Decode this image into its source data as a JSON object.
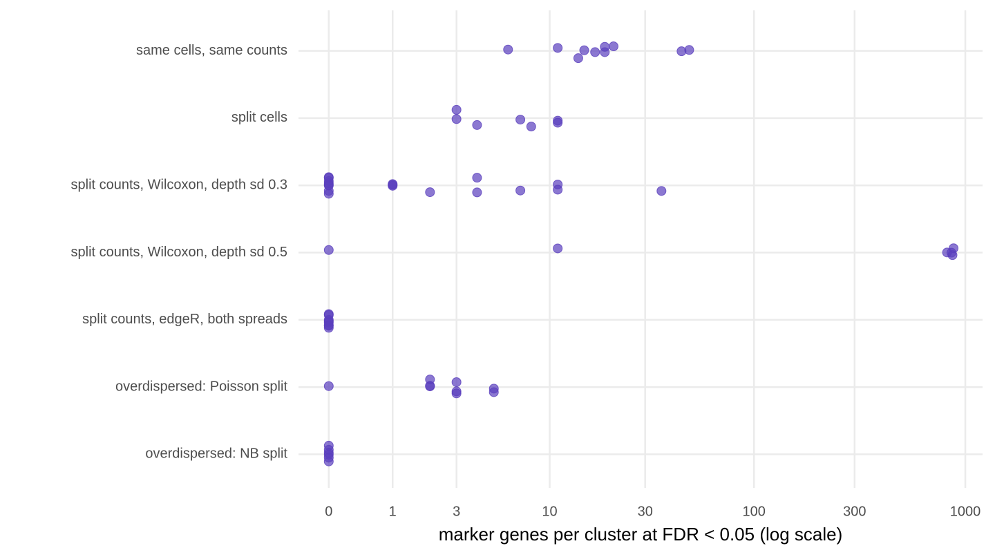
{
  "chart_data": {
    "type": "strip",
    "x_label": "marker genes per cluster at FDR < 0.05 (log scale)",
    "xscale": "log",
    "categories": [
      "same cells, same counts",
      "split cells",
      "split counts, Wilcoxon, depth sd 0.3",
      "split counts, Wilcoxon, depth sd 0.5",
      "split counts, edgeR, both spreads",
      "overdispersed: Poisson split",
      "overdispersed: NB split"
    ],
    "values": [
      [
        14,
        15,
        17,
        19,
        19,
        21,
        45,
        49,
        6,
        11
      ],
      [
        3,
        3,
        4,
        7,
        8,
        11,
        11
      ],
      [
        0,
        0,
        0,
        0,
        0,
        0,
        0,
        0,
        1,
        1,
        1,
        2,
        4,
        4,
        7,
        11,
        11,
        36
      ],
      [
        0,
        11,
        820,
        860,
        870,
        880
      ],
      [
        0,
        0,
        0,
        0,
        0,
        0,
        0,
        0
      ],
      [
        0,
        2,
        2,
        2,
        3,
        3,
        3,
        5,
        5
      ],
      [
        0,
        0,
        0,
        0,
        0,
        0
      ]
    ],
    "color": "#5a3ebd",
    "xlim": [
      -0.28,
      1206
    ],
    "xticks": [
      0,
      1,
      3,
      10,
      30,
      100,
      300,
      1000
    ],
    "grid": true
  }
}
